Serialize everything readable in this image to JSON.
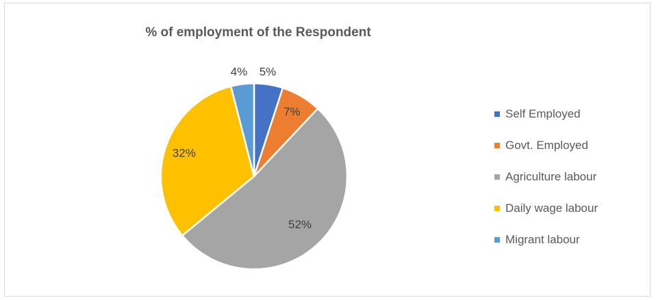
{
  "chart_data": {
    "type": "pie",
    "title": "% of employment of the Respondent",
    "categories": [
      "Self Employed",
      "Govt. Employed",
      "Agriculture labour",
      "Daily wage labour",
      "Migrant labour"
    ],
    "values": [
      5,
      7,
      52,
      32,
      4
    ],
    "labels": [
      "5%",
      "7%",
      "52%",
      "32%",
      "4%"
    ],
    "colors": [
      "#4472c4",
      "#ed7d31",
      "#a5a5a5",
      "#ffc000",
      "#5b9bd5"
    ],
    "legend_position": "right"
  }
}
